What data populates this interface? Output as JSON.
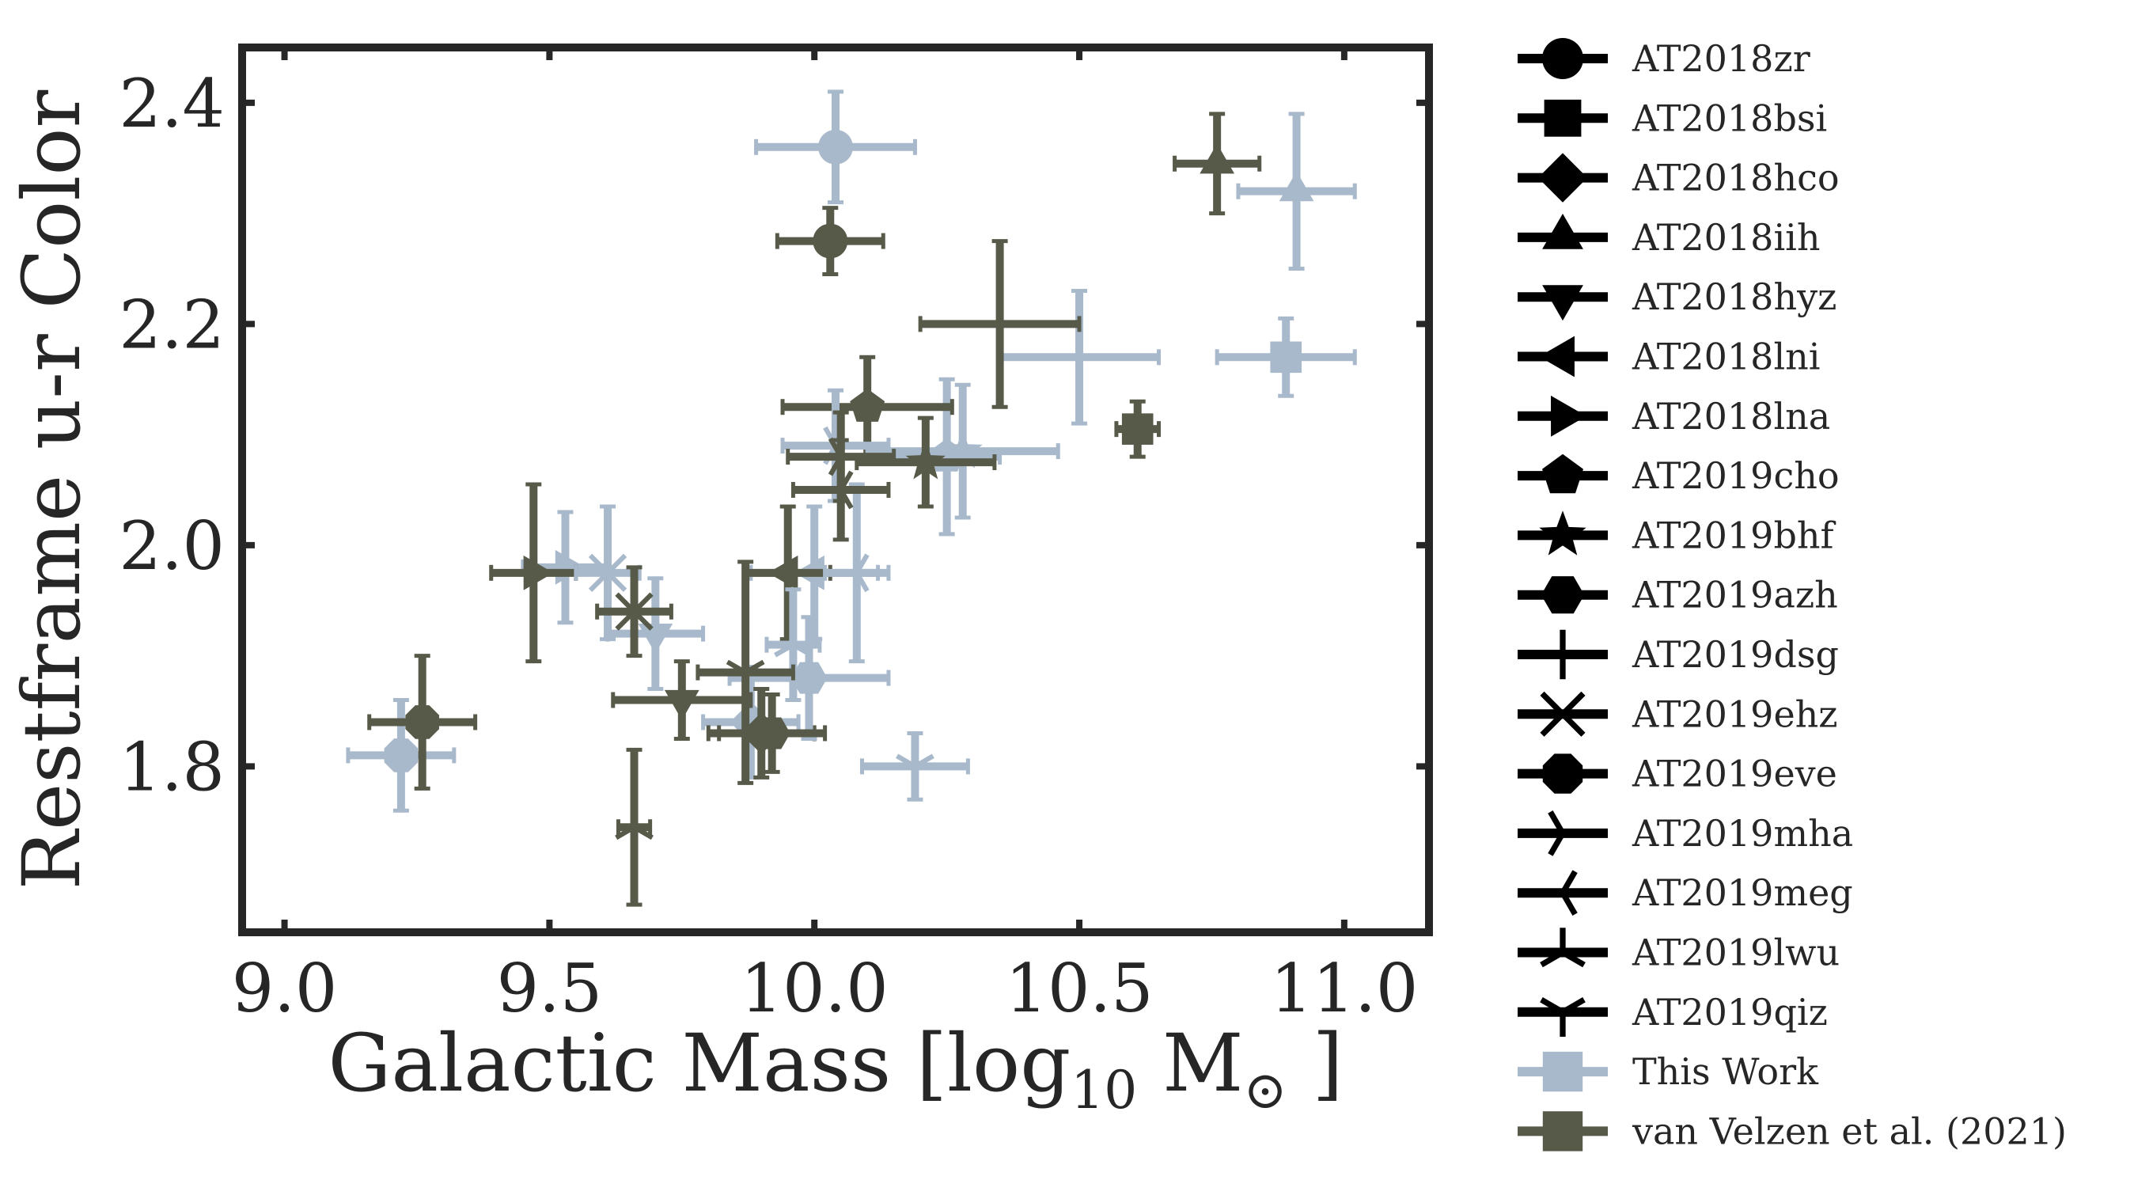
{
  "chart_data": {
    "type": "scatter",
    "title": "",
    "xlabel": "Galactic Mass [log",
    "xlabel_sub": "10",
    "xlabel_unit": " M",
    "xlabel_sun": "⊙",
    "xlabel_end": " ]",
    "ylabel": "Restframe u-r Color",
    "xlim": [
      8.92,
      11.16
    ],
    "ylim": [
      1.65,
      2.45
    ],
    "xticks": [
      9.0,
      9.5,
      10.0,
      10.5,
      11.0
    ],
    "xtick_labels": [
      "9.0",
      "9.5",
      "10.0",
      "10.5",
      "11.0"
    ],
    "yticks": [
      1.8,
      2.0,
      2.2,
      2.4
    ],
    "ytick_labels": [
      "1.8",
      "2.0",
      "2.2",
      "2.4"
    ],
    "grid": false,
    "legend_position": "outside-right",
    "colors": {
      "this_work": "#a9b9cc",
      "van_velzen": "#575a49",
      "legend_marker": "#000000",
      "axes": "#262626"
    },
    "groups": [
      {
        "name": "This Work",
        "color": "#a9b9cc"
      },
      {
        "name": "van Velzen et al. (2021)",
        "color": "#575a49"
      }
    ],
    "objects": [
      {
        "name": "AT2018zr",
        "marker": "circle"
      },
      {
        "name": "AT2018bsi",
        "marker": "square"
      },
      {
        "name": "AT2018hco",
        "marker": "diamond"
      },
      {
        "name": "AT2018iih",
        "marker": "triangle-up"
      },
      {
        "name": "AT2018hyz",
        "marker": "triangle-down"
      },
      {
        "name": "AT2018lni",
        "marker": "triangle-left"
      },
      {
        "name": "AT2018lna",
        "marker": "triangle-right"
      },
      {
        "name": "AT2019cho",
        "marker": "pentagon"
      },
      {
        "name": "AT2019bhf",
        "marker": "star"
      },
      {
        "name": "AT2019azh",
        "marker": "hexagon"
      },
      {
        "name": "AT2019dsg",
        "marker": "plus"
      },
      {
        "name": "AT2019ehz",
        "marker": "x"
      },
      {
        "name": "AT2019eve",
        "marker": "octagon"
      },
      {
        "name": "AT2019mha",
        "marker": "tri-right"
      },
      {
        "name": "AT2019meg",
        "marker": "tri-left"
      },
      {
        "name": "AT2019lwu",
        "marker": "tri-up"
      },
      {
        "name": "AT2019qiz",
        "marker": "tri-down"
      }
    ],
    "points": [
      {
        "object": "AT2018zr",
        "group": "This Work",
        "x": 10.04,
        "y": 2.36,
        "xerr": 0.15,
        "yerr": 0.05
      },
      {
        "object": "AT2018zr",
        "group": "van Velzen et al. (2021)",
        "x": 10.03,
        "y": 2.275,
        "xerr": 0.1,
        "yerr": 0.03
      },
      {
        "object": "AT2018bsi",
        "group": "This Work",
        "x": 10.89,
        "y": 2.17,
        "xerr": 0.13,
        "yerr": 0.035
      },
      {
        "object": "AT2018bsi",
        "group": "van Velzen et al. (2021)",
        "x": 10.61,
        "y": 2.105,
        "xerr": 0.04,
        "yerr": 0.025
      },
      {
        "object": "AT2018hco",
        "group": "This Work",
        "x": 9.88,
        "y": 1.84,
        "xerr": 0.09,
        "yerr": 0.05
      },
      {
        "object": "AT2018hco",
        "group": "van Velzen et al. (2021)",
        "x": 9.9,
        "y": 1.83,
        "xerr": 0.1,
        "yerr": 0.04
      },
      {
        "object": "AT2018iih",
        "group": "This Work",
        "x": 10.91,
        "y": 2.32,
        "xerr": 0.11,
        "yerr": 0.07
      },
      {
        "object": "AT2018iih",
        "group": "van Velzen et al. (2021)",
        "x": 10.76,
        "y": 2.345,
        "xerr": 0.08,
        "yerr": 0.045
      },
      {
        "object": "AT2018hyz",
        "group": "This Work",
        "x": 9.7,
        "y": 1.92,
        "xerr": 0.09,
        "yerr": 0.05
      },
      {
        "object": "AT2018hyz",
        "group": "van Velzen et al. (2021)",
        "x": 9.75,
        "y": 1.86,
        "xerr": 0.13,
        "yerr": 0.035
      },
      {
        "object": "AT2018lni",
        "group": "This Work",
        "x": 10.0,
        "y": 1.975,
        "xerr": 0.12,
        "yerr": 0.06
      },
      {
        "object": "AT2018lni",
        "group": "van Velzen et al. (2021)",
        "x": 9.95,
        "y": 1.975,
        "xerr": 0.08,
        "yerr": 0.06
      },
      {
        "object": "AT2018lna",
        "group": "This Work",
        "x": 9.53,
        "y": 1.98,
        "xerr": 0.08,
        "yerr": 0.05
      },
      {
        "object": "AT2018lna",
        "group": "van Velzen et al. (2021)",
        "x": 9.47,
        "y": 1.975,
        "xerr": 0.08,
        "yerr": 0.08
      },
      {
        "object": "AT2019cho",
        "group": "This Work",
        "x": 10.25,
        "y": 2.08,
        "xerr": 0.1,
        "yerr": 0.07
      },
      {
        "object": "AT2019cho",
        "group": "van Velzen et al. (2021)",
        "x": 10.1,
        "y": 2.125,
        "xerr": 0.16,
        "yerr": 0.045
      },
      {
        "object": "AT2019bhf",
        "group": "This Work",
        "x": 10.28,
        "y": 2.085,
        "xerr": 0.18,
        "yerr": 0.06
      },
      {
        "object": "AT2019bhf",
        "group": "van Velzen et al. (2021)",
        "x": 10.21,
        "y": 2.075,
        "xerr": 0.13,
        "yerr": 0.04
      },
      {
        "object": "AT2019azh",
        "group": "This Work",
        "x": 9.99,
        "y": 1.88,
        "xerr": 0.15,
        "yerr": 0.055
      },
      {
        "object": "AT2019azh",
        "group": "van Velzen et al. (2021)",
        "x": 9.92,
        "y": 1.83,
        "xerr": 0.1,
        "yerr": 0.035
      },
      {
        "object": "AT2019dsg",
        "group": "This Work",
        "x": 10.5,
        "y": 2.17,
        "xerr": 0.15,
        "yerr": 0.06
      },
      {
        "object": "AT2019dsg",
        "group": "van Velzen et al. (2021)",
        "x": 10.35,
        "y": 2.2,
        "xerr": 0.15,
        "yerr": 0.075
      },
      {
        "object": "AT2019ehz",
        "group": "This Work",
        "x": 9.61,
        "y": 1.975,
        "xerr": 0.06,
        "yerr": 0.06
      },
      {
        "object": "AT2019ehz",
        "group": "van Velzen et al. (2021)",
        "x": 9.66,
        "y": 1.94,
        "xerr": 0.07,
        "yerr": 0.04
      },
      {
        "object": "AT2019eve",
        "group": "This Work",
        "x": 9.22,
        "y": 1.81,
        "xerr": 0.1,
        "yerr": 0.05
      },
      {
        "object": "AT2019eve",
        "group": "van Velzen et al. (2021)",
        "x": 9.26,
        "y": 1.84,
        "xerr": 0.1,
        "yerr": 0.06
      },
      {
        "object": "AT2019mha",
        "group": "This Work",
        "x": 10.04,
        "y": 2.09,
        "xerr": 0.1,
        "yerr": 0.05
      },
      {
        "object": "AT2019mha",
        "group": "van Velzen et al. (2021)",
        "x": 10.05,
        "y": 2.08,
        "xerr": 0.1,
        "yerr": 0.04
      },
      {
        "object": "AT2019meg",
        "group": "This Work",
        "x": 10.08,
        "y": 1.975,
        "xerr": 0.06,
        "yerr": 0.08
      },
      {
        "object": "AT2019meg",
        "group": "van Velzen et al. (2021)",
        "x": 10.05,
        "y": 2.05,
        "xerr": 0.09,
        "yerr": 0.045
      },
      {
        "object": "AT2019lwu",
        "group": "This Work",
        "x": 9.96,
        "y": 1.91,
        "xerr": 0.05,
        "yerr": 0.05
      },
      {
        "object": "AT2019lwu",
        "group": "van Velzen et al. (2021)",
        "x": 9.66,
        "y": 1.745,
        "xerr": 0.03,
        "yerr": 0.07
      },
      {
        "object": "AT2019qiz",
        "group": "This Work",
        "x": 10.19,
        "y": 1.8,
        "xerr": 0.1,
        "yerr": 0.03
      },
      {
        "object": "AT2019qiz",
        "group": "van Velzen et al. (2021)",
        "x": 9.87,
        "y": 1.885,
        "xerr": 0.09,
        "yerr": 0.1
      }
    ]
  }
}
